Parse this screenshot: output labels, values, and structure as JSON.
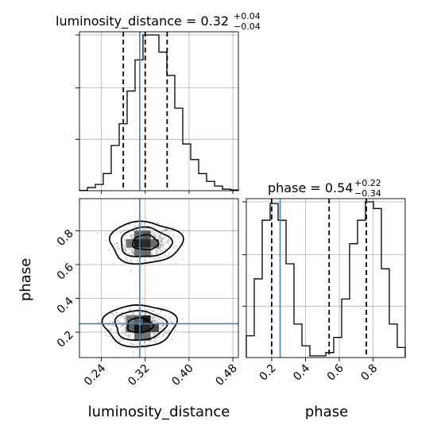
{
  "chart_data": {
    "type": "corner",
    "parameters": [
      "luminosity_distance",
      "phase"
    ],
    "truths": {
      "luminosity_distance": 0.31,
      "phase": 0.25
    },
    "titles": {
      "luminosity_distance": {
        "base": "luminosity_distance = 0.32",
        "plus": "+0.04",
        "minus": "−0.04"
      },
      "phase": {
        "base": "phase = 0.54",
        "plus": "+0.22",
        "minus": "−0.34"
      }
    },
    "axes": {
      "luminosity_distance": {
        "label": "luminosity_distance",
        "range": [
          0.2,
          0.49
        ],
        "ticks": [
          0.24,
          0.32,
          0.4,
          0.48
        ],
        "tick_labels": [
          "0.24",
          "0.32",
          "0.40",
          "0.48"
        ]
      },
      "phase": {
        "label": "phase",
        "range": [
          0.05,
          0.99
        ],
        "ticks": [
          0.2,
          0.4,
          0.6,
          0.8
        ],
        "tick_labels": [
          "0.2",
          "0.4",
          "0.6",
          "0.8"
        ]
      }
    },
    "marginals": {
      "luminosity_distance": {
        "bin_edges": [
          0.2,
          0.2145,
          0.229,
          0.2435,
          0.258,
          0.2725,
          0.287,
          0.3015,
          0.316,
          0.3305,
          0.345,
          0.3595,
          0.374,
          0.3885,
          0.403,
          0.4175,
          0.432,
          0.4465,
          0.461,
          0.4755,
          0.49
        ],
        "counts": [
          0.002,
          0.02,
          0.04,
          0.11,
          0.29,
          0.43,
          0.64,
          0.84,
          1.0,
          1.0,
          0.89,
          0.74,
          0.53,
          0.3,
          0.2,
          0.11,
          0.06,
          0.03,
          0.01,
          0.005
        ],
        "quantiles": [
          0.28,
          0.32,
          0.36
        ]
      },
      "phase": {
        "bin_edges": [
          0.05,
          0.097,
          0.144,
          0.191,
          0.238,
          0.285,
          0.332,
          0.379,
          0.426,
          0.473,
          0.52,
          0.567,
          0.614,
          0.661,
          0.708,
          0.755,
          0.802,
          0.849,
          0.896,
          0.943,
          0.99
        ],
        "counts": [
          0.13,
          0.47,
          0.82,
          0.92,
          0.82,
          0.56,
          0.2,
          0.07,
          0.01,
          0.01,
          0.03,
          0.12,
          0.35,
          0.68,
          0.82,
          0.93,
          0.89,
          0.53,
          0.2,
          0.06
        ],
        "quantiles": [
          0.2,
          0.54,
          0.76
        ]
      }
    },
    "joint": {
      "x": "luminosity_distance",
      "y": "phase",
      "modes": [
        {
          "center": [
            0.32,
            0.73
          ],
          "sd": [
            0.025,
            0.05
          ]
        },
        {
          "center": [
            0.31,
            0.24
          ],
          "sd": [
            0.025,
            0.05
          ]
        }
      ],
      "density_cells": [
        {
          "x": [
            0.3,
            0.315
          ],
          "y": [
            0.7,
            0.75
          ],
          "shade": "#1a1a1a"
        },
        {
          "x": [
            0.315,
            0.33
          ],
          "y": [
            0.7,
            0.75
          ],
          "shade": "#2a2a2a"
        },
        {
          "x": [
            0.285,
            0.3
          ],
          "y": [
            0.7,
            0.75
          ],
          "shade": "#707070"
        },
        {
          "x": [
            0.33,
            0.345
          ],
          "y": [
            0.7,
            0.75
          ],
          "shade": "#6a6a6a"
        },
        {
          "x": [
            0.3,
            0.315
          ],
          "y": [
            0.75,
            0.8
          ],
          "shade": "#666666"
        },
        {
          "x": [
            0.315,
            0.33
          ],
          "y": [
            0.75,
            0.8
          ],
          "shade": "#5a5a5a"
        },
        {
          "x": [
            0.3,
            0.315
          ],
          "y": [
            0.65,
            0.7
          ],
          "shade": "#6e6e6e"
        },
        {
          "x": [
            0.315,
            0.33
          ],
          "y": [
            0.65,
            0.7
          ],
          "shade": "#646464"
        },
        {
          "x": [
            0.3,
            0.315
          ],
          "y": [
            0.2,
            0.25
          ],
          "shade": "#141414"
        },
        {
          "x": [
            0.315,
            0.33
          ],
          "y": [
            0.2,
            0.25
          ],
          "shade": "#2a2a2a"
        },
        {
          "x": [
            0.285,
            0.3
          ],
          "y": [
            0.2,
            0.25
          ],
          "shade": "#5e5e5e"
        },
        {
          "x": [
            0.33,
            0.345
          ],
          "y": [
            0.2,
            0.25
          ],
          "shade": "#4a4a4a"
        },
        {
          "x": [
            0.315,
            0.33
          ],
          "y": [
            0.25,
            0.3
          ],
          "shade": "#1e1e1e"
        },
        {
          "x": [
            0.3,
            0.315
          ],
          "y": [
            0.25,
            0.3
          ],
          "shade": "#5a5a5a"
        },
        {
          "x": [
            0.285,
            0.3
          ],
          "y": [
            0.25,
            0.3
          ],
          "shade": "#7a7a7a"
        },
        {
          "x": [
            0.3,
            0.315
          ],
          "y": [
            0.15,
            0.2
          ],
          "shade": "#6a6a6a"
        },
        {
          "x": [
            0.315,
            0.33
          ],
          "y": [
            0.15,
            0.2
          ],
          "shade": "#727272"
        }
      ],
      "contour_levels_sigma": [
        0.6,
        1.2,
        1.7
      ]
    },
    "colors": {
      "truth": "#4682b4",
      "hist": "#000000",
      "grid": "#b0b0b0",
      "points": "#7f7f7f"
    },
    "grid": true
  }
}
